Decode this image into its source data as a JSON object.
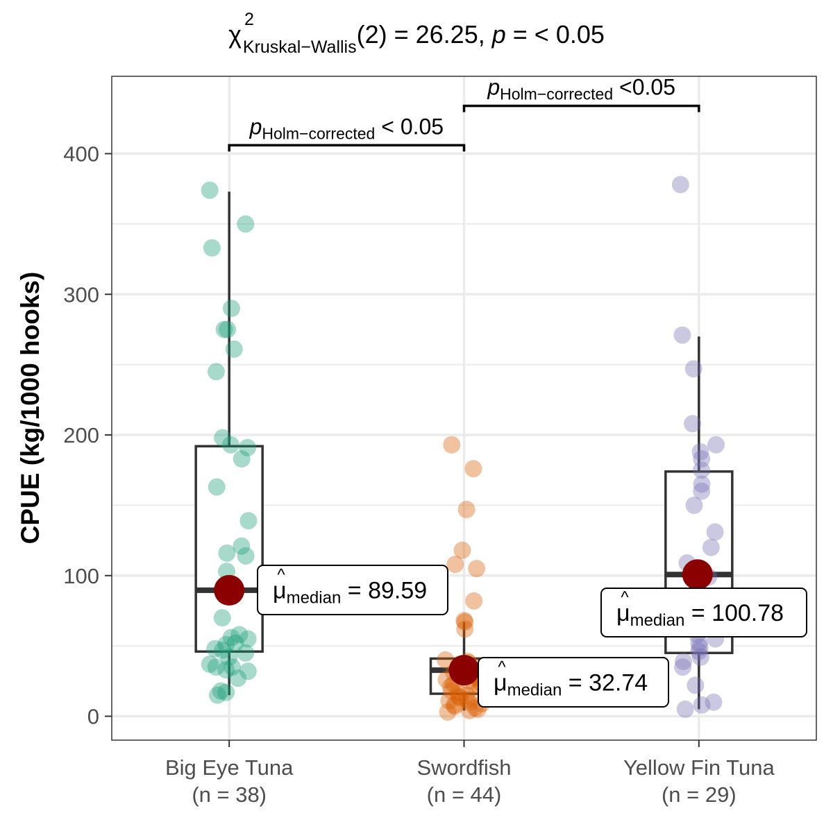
{
  "chart_data": {
    "type": "box",
    "title": {
      "chi": "χ",
      "sup": "2",
      "sub": "Kruskal−Wallis",
      "df": "(2) = 26.25, ",
      "p": "p",
      "tail": " = < 0.05"
    },
    "ylabel": "CPUE (kg/1000 hooks)",
    "ylim": [
      -17,
      455
    ],
    "yticks": [
      0,
      100,
      200,
      300,
      400
    ],
    "grid": true,
    "categories": [
      {
        "name": "Big Eye Tuna",
        "n_label": "(n = 38)",
        "color": "#1b9e77"
      },
      {
        "name": "Swordfish",
        "n_label": "(n = 44)",
        "color": "#d95f02"
      },
      {
        "name": "Yellow Fin Tuna",
        "n_label": "(n = 29)",
        "color": "#7570b3"
      }
    ],
    "boxes": [
      {
        "q1": 46,
        "median": 89.59,
        "q3": 192,
        "whisker_low": 15,
        "whisker_high": 373
      },
      {
        "q1": 16,
        "median": 32.74,
        "q3": 41,
        "whisker_low": 4,
        "whisker_high": 67
      },
      {
        "q1": 45,
        "median": 100.78,
        "q3": 174,
        "whisker_low": 5,
        "whisker_high": 270
      }
    ],
    "points": [
      [
        374,
        350,
        333,
        290,
        275,
        275,
        261,
        245,
        198,
        193,
        191,
        183,
        163,
        139,
        121,
        116,
        114,
        103,
        88,
        70,
        58,
        56,
        52,
        51,
        48,
        47,
        42,
        37,
        35,
        33,
        32,
        27,
        18,
        17,
        15,
        35,
        55,
        45
      ],
      [
        193,
        176,
        147,
        118,
        108,
        105,
        82,
        68,
        67,
        62,
        40,
        39,
        38,
        37,
        35,
        33,
        32,
        31,
        30,
        29,
        28,
        27,
        26,
        25,
        24,
        23,
        22,
        21,
        20,
        18,
        17,
        15,
        14,
        13,
        12,
        11,
        10,
        9,
        8,
        7,
        6,
        5,
        4,
        3
      ],
      [
        378,
        271,
        247,
        208,
        193,
        188,
        183,
        175,
        165,
        160,
        150,
        131,
        120,
        109,
        99,
        85,
        66,
        58,
        55,
        52,
        49,
        46,
        39,
        35,
        22,
        10,
        8,
        5,
        42
      ]
    ],
    "medians": [
      {
        "mu": "μ",
        "sub": "median",
        "eq": " = ",
        "value": "89.59"
      },
      {
        "mu": "μ",
        "sub": "median",
        "eq": " = ",
        "value": "32.74"
      },
      {
        "mu": "μ",
        "sub": "median",
        "eq": " = ",
        "value": "100.78"
      }
    ],
    "comparisons": [
      {
        "from": 0,
        "to": 1,
        "y": 406,
        "p": "p",
        "sub": "Holm−corrected",
        "text": " < 0.05"
      },
      {
        "from": 1,
        "to": 2,
        "y": 434,
        "p": "p",
        "sub": "Holm−corrected",
        "text": " <0.05"
      }
    ]
  }
}
